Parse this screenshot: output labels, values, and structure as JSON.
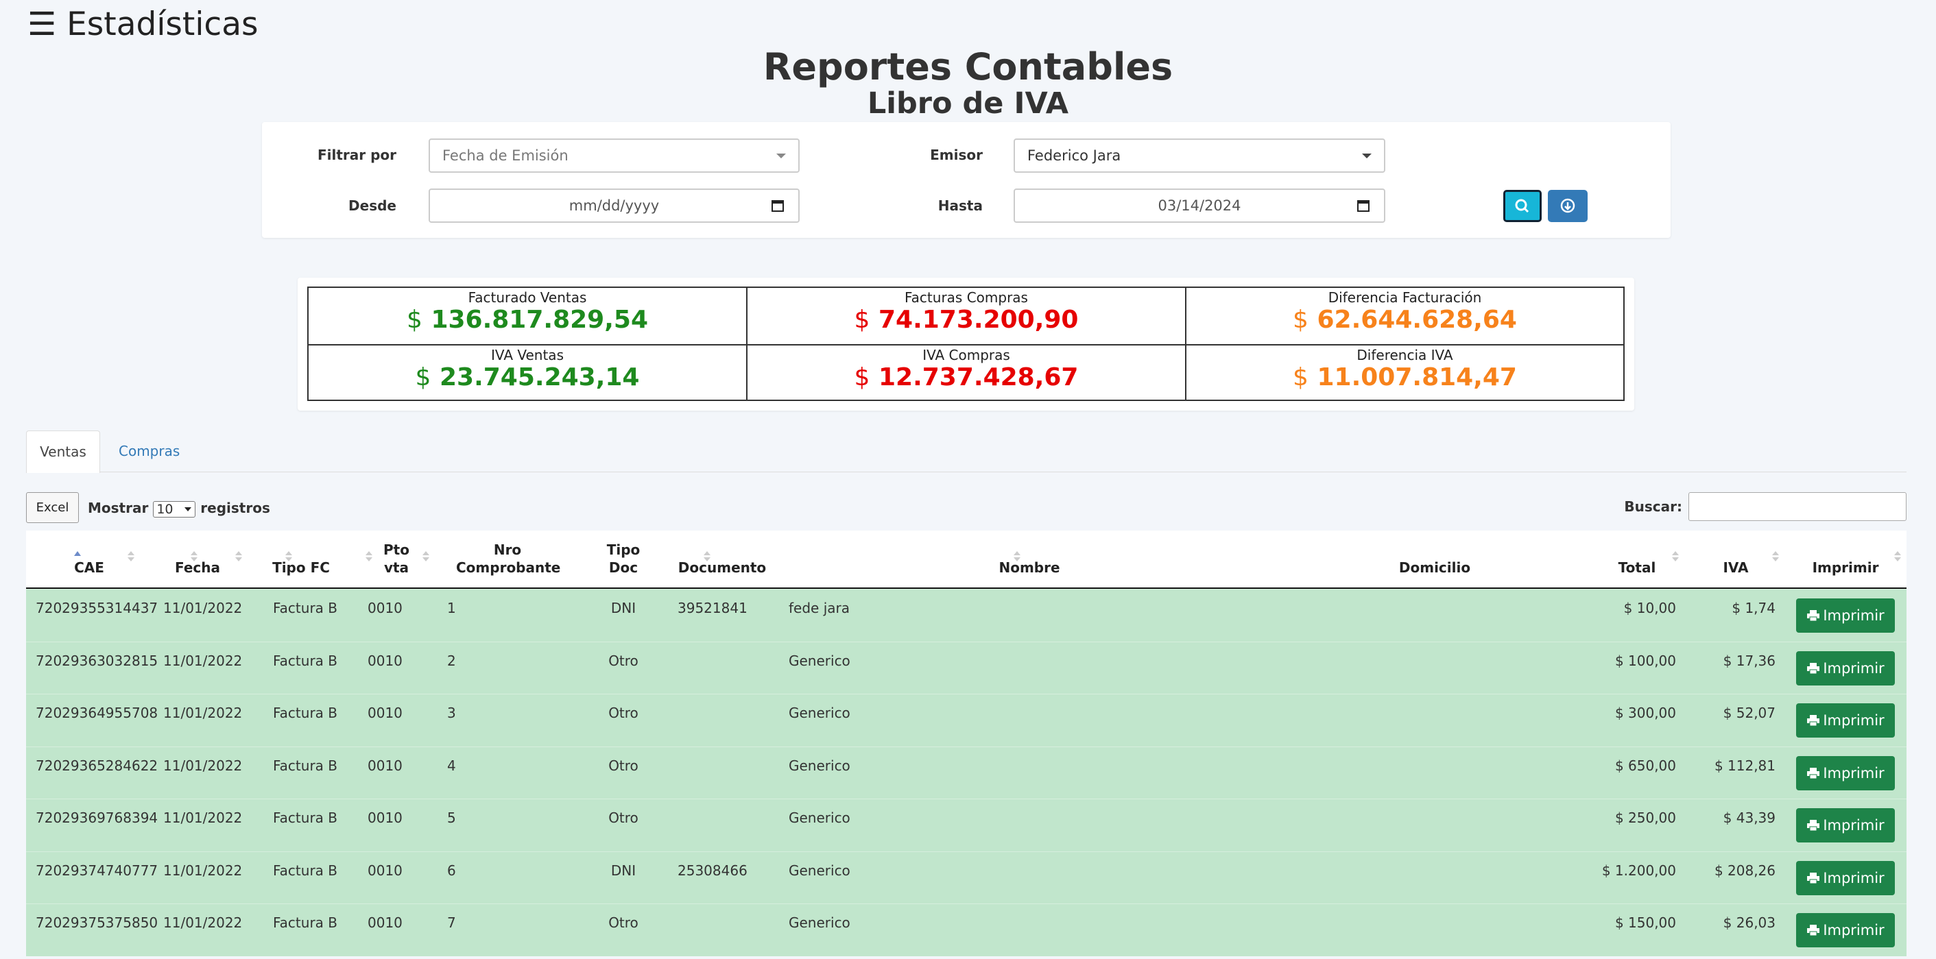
{
  "header": {
    "title": "Estadísticas"
  },
  "page_title": "Reportes Contables",
  "subtitle": "Libro de IVA",
  "filters": {
    "filter_by_label": "Filtrar por",
    "filter_by_value": "Fecha de Emisión",
    "emisor_label": "Emisor",
    "emisor_value": "Federico Jara",
    "desde_label": "Desde",
    "desde_placeholder": "mm/dd/yyyy",
    "hasta_label": "Hasta",
    "hasta_value": "03/14/2024"
  },
  "summary": {
    "currency": "$",
    "cells": [
      {
        "label": "Facturado Ventas",
        "value": "136.817.829,54"
      },
      {
        "label": "Facturas Compras",
        "value": "74.173.200,90"
      },
      {
        "label": "Diferencia Facturación",
        "value": "62.644.628,64"
      },
      {
        "label": "IVA Ventas",
        "value": "23.745.243,14"
      },
      {
        "label": "IVA Compras",
        "value": "12.737.428,67"
      },
      {
        "label": "Diferencia IVA",
        "value": "11.007.814,47"
      }
    ]
  },
  "tabs": [
    "Ventas",
    "Compras"
  ],
  "controls": {
    "excel": "Excel",
    "show": "Mostrar",
    "page_size": "10",
    "records": "registros",
    "search": "Buscar:"
  },
  "table": {
    "columns": [
      "CAE",
      "Fecha",
      "Tipo FC",
      "Pto vta",
      "Nro Comprobante",
      "Tipo Doc",
      "Documento",
      "Nombre",
      "Domicilio",
      "Total",
      "IVA",
      "Imprimir"
    ],
    "print_button": "Imprimir",
    "rows": [
      {
        "cae": "72029355314437",
        "fecha": "11/01/2022",
        "tipo_fc": "Factura B",
        "pto_vta": "0010",
        "nro": "1",
        "tipo_doc": "DNI",
        "documento": "39521841",
        "nombre": "fede jara",
        "total": "$ 10,00",
        "iva": "$ 1,74"
      },
      {
        "cae": "72029363032815",
        "fecha": "11/01/2022",
        "tipo_fc": "Factura B",
        "pto_vta": "0010",
        "nro": "2",
        "tipo_doc": "Otro",
        "nombre": "Generico",
        "total": "$ 100,00",
        "iva": "$ 17,36"
      },
      {
        "cae": "72029364955708",
        "fecha": "11/01/2022",
        "tipo_fc": "Factura B",
        "pto_vta": "0010",
        "nro": "3",
        "tipo_doc": "Otro",
        "nombre": "Generico",
        "total": "$ 300,00",
        "iva": "$ 52,07"
      },
      {
        "cae": "72029365284622",
        "fecha": "11/01/2022",
        "tipo_fc": "Factura B",
        "pto_vta": "0010",
        "nro": "4",
        "tipo_doc": "Otro",
        "nombre": "Generico",
        "total": "$ 650,00",
        "iva": "$ 112,81"
      },
      {
        "cae": "72029369768394",
        "fecha": "11/01/2022",
        "tipo_fc": "Factura B",
        "pto_vta": "0010",
        "nro": "5",
        "tipo_doc": "Otro",
        "nombre": "Generico",
        "total": "$ 250,00",
        "iva": "$ 43,39"
      },
      {
        "cae": "72029374740777",
        "fecha": "11/01/2022",
        "tipo_fc": "Factura B",
        "pto_vta": "0010",
        "nro": "6",
        "tipo_doc": "DNI",
        "documento": "25308466",
        "nombre": "Generico",
        "total": "$ 1.200,00",
        "iva": "$ 208,26"
      },
      {
        "cae": "72029375375850",
        "fecha": "11/01/2022",
        "tipo_fc": "Factura B",
        "pto_vta": "0010",
        "nro": "7",
        "tipo_doc": "Otro",
        "nombre": "Generico",
        "total": "$ 150,00",
        "iva": "$ 26,03"
      }
    ]
  }
}
